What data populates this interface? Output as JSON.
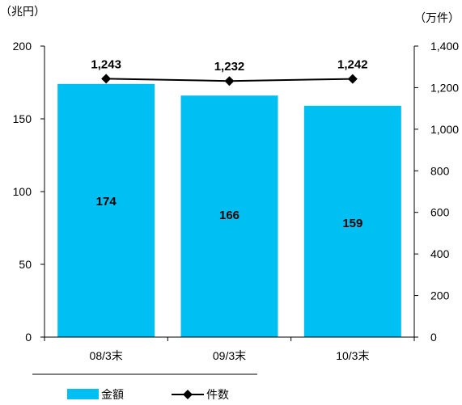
{
  "chart_data": {
    "type": "bar",
    "categories": [
      "08/3末",
      "09/3末",
      "10/3末"
    ],
    "series": [
      {
        "name": "金額",
        "type": "bar",
        "axis": "left",
        "unit": "（兆円）",
        "values": [
          174,
          166,
          159
        ],
        "labels": [
          "174",
          "166",
          "159"
        ],
        "color": "#00BFF3"
      },
      {
        "name": "件数",
        "type": "line",
        "axis": "right",
        "unit": "（万件）",
        "values": [
          1243,
          1232,
          1242
        ],
        "labels": [
          "1,243",
          "1,232",
          "1,242"
        ],
        "color": "#000000"
      }
    ],
    "y_left": {
      "label": "（兆円）",
      "ylim": [
        0,
        200
      ],
      "ticks": [
        0,
        50,
        100,
        150,
        200
      ],
      "tick_labels": [
        "0",
        "50",
        "100",
        "150",
        "200"
      ]
    },
    "y_right": {
      "label": "（万件）",
      "ylim": [
        0,
        1400
      ],
      "ticks": [
        0,
        200,
        400,
        600,
        800,
        1000,
        1200,
        1400
      ],
      "tick_labels": [
        "0",
        "200",
        "400",
        "600",
        "800",
        "1,000",
        "1,200",
        "1,400"
      ]
    },
    "grid": false,
    "legend": "bottom"
  }
}
